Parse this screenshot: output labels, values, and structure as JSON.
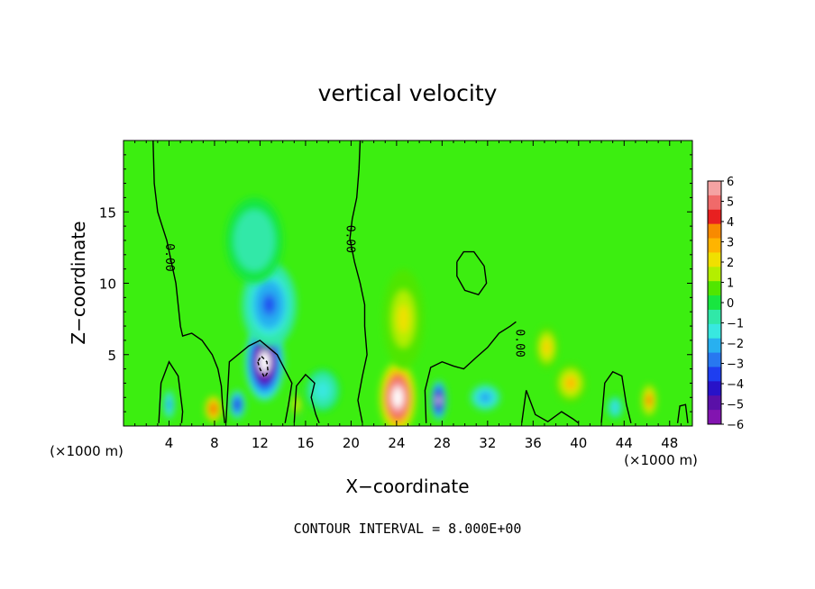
{
  "chart_data": {
    "type": "heatmap",
    "title": "vertical velocity",
    "xlabel": "X−coordinate",
    "ylabel": "Z−coordinate",
    "x_unit_label": "(×1000 m)",
    "z_unit_label": "(×1000 m)",
    "xlim": [
      0,
      50
    ],
    "ylim": [
      0,
      20
    ],
    "x_ticks": [
      4,
      8,
      12,
      16,
      20,
      24,
      28,
      32,
      36,
      40,
      44,
      48
    ],
    "y_ticks": [
      5,
      10,
      15
    ],
    "colorbar": {
      "labels": [
        "6",
        "5",
        "4",
        "3",
        "2",
        "1",
        "0",
        "−1",
        "−2",
        "−3",
        "−4",
        "−5",
        "−6"
      ],
      "colors": [
        "#f4a3a3",
        "#f06a6a",
        "#e82020",
        "#f88a00",
        "#ffb400",
        "#f0e000",
        "#b4ee00",
        "#50e600",
        "#18e640",
        "#30e8a8",
        "#38e8e0",
        "#28b0f0",
        "#2878f0",
        "#1e3ef0",
        "#2812c8",
        "#5a10a8",
        "#8214b0"
      ],
      "range": [
        -6,
        6
      ]
    },
    "background_color": "#3cee10",
    "features": [
      {
        "kind": "updraft",
        "x": 24.1,
        "z": 2.0,
        "rx": 1.6,
        "rz": 2.5,
        "peak": 8
      },
      {
        "kind": "updraft",
        "x": 24.6,
        "z": 7.5,
        "rx": 1.8,
        "rz": 3.5,
        "peak": 2.4
      },
      {
        "kind": "updraft",
        "x": 7.9,
        "z": 1.2,
        "rx": 0.8,
        "rz": 1.0,
        "peak": 4.5
      },
      {
        "kind": "updraft",
        "x": 37.2,
        "z": 5.5,
        "rx": 1.0,
        "rz": 1.5,
        "peak": 2.5
      },
      {
        "kind": "updraft",
        "x": 39.3,
        "z": 3.0,
        "rx": 1.4,
        "rz": 1.4,
        "peak": 3.0
      },
      {
        "kind": "updraft",
        "x": 46.2,
        "z": 1.8,
        "rx": 0.7,
        "rz": 1.2,
        "peak": 4.0
      },
      {
        "kind": "updraft",
        "x": 15.2,
        "z": 1.5,
        "rx": 0.6,
        "rz": 1.2,
        "peak": 1.8
      },
      {
        "kind": "downdraft",
        "x": 12.4,
        "z": 4.5,
        "rx": 1.7,
        "rz": 2.7,
        "peak": -8
      },
      {
        "kind": "downdraft",
        "x": 12.8,
        "z": 8.5,
        "rx": 2.4,
        "rz": 3.0,
        "peak": -3.2
      },
      {
        "kind": "downdraft",
        "x": 10.0,
        "z": 1.5,
        "rx": 0.7,
        "rz": 1.0,
        "peak": -4.5
      },
      {
        "kind": "downdraft",
        "x": 27.7,
        "z": 1.8,
        "rx": 0.7,
        "rz": 1.4,
        "peak": -6.5
      },
      {
        "kind": "downdraft",
        "x": 31.8,
        "z": 2.0,
        "rx": 1.3,
        "rz": 0.9,
        "peak": -2.6
      },
      {
        "kind": "downdraft",
        "x": 4.0,
        "z": 1.5,
        "rx": 0.5,
        "rz": 1.0,
        "peak": -2.5
      },
      {
        "kind": "downdraft",
        "x": 17.5,
        "z": 2.5,
        "rx": 1.5,
        "rz": 1.5,
        "peak": -1.5
      },
      {
        "kind": "downdraft",
        "x": 43.2,
        "z": 1.3,
        "rx": 0.7,
        "rz": 0.8,
        "peak": -2.0
      },
      {
        "kind": "downdraft",
        "x": 11.5,
        "z": 13.0,
        "rx": 2.5,
        "rz": 3.0,
        "peak": -1.0
      }
    ],
    "contours": [
      {
        "level": 0,
        "label": "0.00",
        "label_x": 4.0,
        "label_z": 11.8,
        "points": [
          [
            2.6,
            20
          ],
          [
            2.7,
            17
          ],
          [
            3.0,
            15
          ],
          [
            3.4,
            14
          ],
          [
            3.8,
            13
          ],
          [
            4.2,
            11.5
          ],
          [
            4.6,
            10
          ],
          [
            4.8,
            8.5
          ],
          [
            5.0,
            7.0
          ],
          [
            5.2,
            6.3
          ],
          [
            6.0,
            6.5
          ],
          [
            6.9,
            6.0
          ],
          [
            7.8,
            5.0
          ],
          [
            8.3,
            4.0
          ],
          [
            8.6,
            2.8
          ],
          [
            8.7,
            1.5
          ],
          [
            8.9,
            0.2
          ]
        ]
      },
      {
        "level": 0,
        "label": "0.00",
        "label_x": 19.9,
        "label_z": 13.1,
        "points": [
          [
            20.8,
            20
          ],
          [
            20.7,
            18
          ],
          [
            20.5,
            16
          ],
          [
            20.1,
            14.5
          ],
          [
            19.9,
            13.1
          ],
          [
            20.3,
            11.5
          ],
          [
            20.8,
            10
          ],
          [
            21.2,
            8.5
          ],
          [
            21.2,
            7.0
          ],
          [
            21.4,
            5.0
          ],
          [
            21.0,
            3.5
          ],
          [
            20.6,
            1.8
          ],
          [
            21.0,
            0.2
          ]
        ]
      },
      {
        "level": 0,
        "label": "0.00",
        "label_x": 34.8,
        "label_z": 5.8,
        "points": [
          [
            34.5,
            7.3
          ],
          [
            34.0,
            7.0
          ],
          [
            33.0,
            6.5
          ],
          [
            32.0,
            5.5
          ],
          [
            31.0,
            4.8
          ],
          [
            29.9,
            4.0
          ],
          [
            29.0,
            4.2
          ],
          [
            28.0,
            4.5
          ],
          [
            27.0,
            4.1
          ],
          [
            26.5,
            2.5
          ],
          [
            26.6,
            0.2
          ]
        ]
      },
      {
        "level": 0,
        "label": "",
        "label_x": 0,
        "label_z": 0,
        "points": [
          [
            29.3,
            11.5
          ],
          [
            29.9,
            12.2
          ],
          [
            30.8,
            12.2
          ],
          [
            31.7,
            11.2
          ],
          [
            31.9,
            10.0
          ],
          [
            31.2,
            9.2
          ],
          [
            30.0,
            9.5
          ],
          [
            29.3,
            10.5
          ],
          [
            29.3,
            11.5
          ]
        ]
      },
      {
        "level": 0,
        "label": "",
        "label_x": 0,
        "label_z": 0,
        "points": [
          [
            3.1,
            0.2
          ],
          [
            3.3,
            3.0
          ],
          [
            4.0,
            4.5
          ],
          [
            4.8,
            3.5
          ],
          [
            5.2,
            1.0
          ],
          [
            5.1,
            0.2
          ]
        ]
      },
      {
        "level": 0,
        "label": "",
        "label_x": 0,
        "label_z": 0,
        "points": [
          [
            9.0,
            0.2
          ],
          [
            9.3,
            4.5
          ],
          [
            11.0,
            5.6
          ],
          [
            12.0,
            6.0
          ],
          [
            13.5,
            5.0
          ],
          [
            14.8,
            3.0
          ],
          [
            14.5,
            1.5
          ],
          [
            14.2,
            0.2
          ]
        ]
      },
      {
        "level": 0,
        "label": "",
        "label_x": 0,
        "label_z": 0,
        "points": [
          [
            15.0,
            0.2
          ],
          [
            15.2,
            2.8
          ],
          [
            16.0,
            3.6
          ],
          [
            16.8,
            3.0
          ],
          [
            16.5,
            2.0
          ],
          [
            16.9,
            0.8
          ],
          [
            17.2,
            0.2
          ]
        ]
      },
      {
        "level": 0,
        "label": "",
        "label_x": 0,
        "label_z": 0,
        "points": [
          [
            35.0,
            0.2
          ],
          [
            35.4,
            2.5
          ],
          [
            36.2,
            0.8
          ],
          [
            37.3,
            0.3
          ],
          [
            38.5,
            1.0
          ],
          [
            39.5,
            0.5
          ],
          [
            40.0,
            0.2
          ]
        ]
      },
      {
        "level": 0,
        "label": "",
        "label_x": 0,
        "label_z": 0,
        "points": [
          [
            42.0,
            0.2
          ],
          [
            42.3,
            3.0
          ],
          [
            43.0,
            3.8
          ],
          [
            43.8,
            3.5
          ],
          [
            44.2,
            1.5
          ],
          [
            44.6,
            0.2
          ]
        ]
      },
      {
        "level": 0,
        "label": "",
        "label_x": 0,
        "label_z": 0,
        "points": [
          [
            48.7,
            0.2
          ],
          [
            48.9,
            1.4
          ],
          [
            49.4,
            1.5
          ],
          [
            49.6,
            0.2
          ]
        ]
      },
      {
        "level": -8,
        "label": "",
        "label_x": 0,
        "label_z": 0,
        "dashed": true,
        "points": [
          [
            11.8,
            4.5
          ],
          [
            12.0,
            4.0
          ],
          [
            12.4,
            3.4
          ],
          [
            12.7,
            3.8
          ],
          [
            12.6,
            4.5
          ],
          [
            12.1,
            4.9
          ],
          [
            11.8,
            4.5
          ]
        ]
      }
    ],
    "grid": false,
    "legend": "colorbar-right",
    "footer": "CONTOUR INTERVAL = 8.000E+00"
  }
}
